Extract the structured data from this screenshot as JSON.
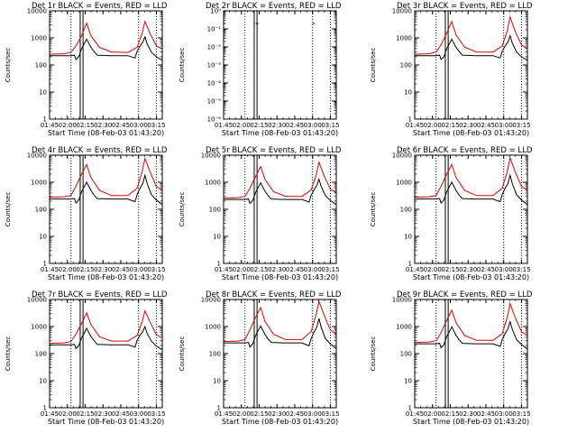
{
  "chart_data": {
    "type": "line",
    "colors": {
      "events": "#000000",
      "lld": "#dd0000"
    },
    "x_tick_labels": [
      "01:45",
      "02:00",
      "02:15",
      "02:30",
      "02:45",
      "03:00",
      "03:15"
    ],
    "x_ticks_hours": [
      1.75,
      2.0,
      2.25,
      2.5,
      2.75,
      3.0,
      3.25
    ],
    "xlim_hours": [
      1.75,
      3.333
    ],
    "xlabel": "Start Time (08-Feb-03 01:43:20)",
    "ylabel": "Counts/sec",
    "log_y": true,
    "grid": false,
    "panels": [
      {
        "title": "Det 1r BLACK = Events, RED = LLD",
        "ylim": [
          1,
          10000
        ],
        "y_tick_labels": [
          "1",
          "10",
          "100",
          "1000",
          "10000"
        ],
        "y_ticks": [
          1,
          10,
          100,
          1000,
          10000
        ],
        "markers_solid": [
          2.18,
          2.22
        ],
        "markers_dotted": [
          2.05,
          3.0,
          3.25
        ],
        "series": [
          {
            "key": "lld",
            "x": [
              1.75,
              1.95,
              2.05,
              2.12,
              2.2,
              2.27,
              2.33,
              2.45,
              2.62,
              2.85,
              2.98,
              3.05,
              3.09,
              3.16,
              3.25,
              3.33
            ],
            "y": [
              250,
              260,
              290,
              500,
              1200,
              3500,
              1200,
              450,
              300,
              290,
              450,
              1500,
              4000,
              1500,
              500,
              400
            ]
          },
          {
            "key": "events",
            "x": [
              1.75,
              2.05,
              2.1,
              2.12,
              2.16,
              2.2,
              2.27,
              2.33,
              2.38,
              2.42,
              2.6,
              2.85,
              2.95,
              2.98,
              3.02,
              3.06,
              3.09,
              3.12,
              3.18,
              3.25,
              3.33
            ],
            "y": [
              220,
              220,
              230,
              160,
              200,
              400,
              900,
              450,
              300,
              230,
              220,
              220,
              180,
              320,
              500,
              700,
              1100,
              600,
              300,
              200,
              150
            ]
          }
        ]
      },
      {
        "title": "Det 2r BLACK = Events, RED = LLD",
        "ylim": [
          1e-06,
          1
        ],
        "y_tick_labels": [
          "10⁰",
          "10⁻¹",
          "10⁻²",
          "10⁻³",
          "10⁻⁴",
          "10⁻⁵",
          "10⁻⁶"
        ],
        "y_ticks": [
          1,
          0.1,
          0.01,
          0.001,
          0.0001,
          1e-05,
          1e-06
        ],
        "markers_solid": [
          2.18,
          2.22
        ],
        "markers_dotted": [
          2.05,
          3.0,
          3.25
        ],
        "series": [
          {
            "key": "events",
            "x": [
              1.75,
              1.77
            ],
            "y": [
              0.2,
              0.2
            ]
          },
          {
            "key": "events",
            "x": [
              2.2,
              2.24
            ],
            "y": [
              0.2,
              0.2
            ]
          },
          {
            "key": "events",
            "x": [
              3.0,
              3.03
            ],
            "y": [
              0.2,
              0.2
            ]
          }
        ]
      },
      {
        "title": "Det 3r BLACK = Events, RED = LLD",
        "ylim": [
          1,
          10000
        ],
        "y_tick_labels": [
          "1",
          "10",
          "100",
          "1000",
          "10000"
        ],
        "y_ticks": [
          1,
          10,
          100,
          1000,
          10000
        ],
        "markers_solid": [
          2.18,
          2.22
        ],
        "markers_dotted": [
          2.05,
          3.0,
          3.25
        ],
        "series": [
          {
            "key": "lld",
            "x": [
              1.75,
              1.95,
              2.05,
              2.12,
              2.2,
              2.27,
              2.33,
              2.45,
              2.62,
              2.85,
              2.98,
              3.05,
              3.09,
              3.16,
              3.25,
              3.33
            ],
            "y": [
              250,
              260,
              300,
              550,
              1500,
              4000,
              1300,
              450,
              300,
              300,
              500,
              1800,
              6000,
              1800,
              550,
              400
            ]
          },
          {
            "key": "events",
            "x": [
              1.75,
              2.05,
              2.1,
              2.12,
              2.16,
              2.2,
              2.27,
              2.33,
              2.38,
              2.42,
              2.6,
              2.85,
              2.95,
              2.98,
              3.02,
              3.06,
              3.09,
              3.12,
              3.18,
              3.25,
              3.33
            ],
            "y": [
              220,
              220,
              230,
              160,
              200,
              400,
              900,
              450,
              300,
              230,
              220,
              220,
              180,
              320,
              500,
              700,
              1200,
              650,
              300,
              200,
              150
            ]
          }
        ]
      },
      {
        "title": "Det 4r BLACK = Events, RED = LLD",
        "ylim": [
          1,
          10000
        ],
        "y_tick_labels": [
          "1",
          "10",
          "100",
          "1000",
          "10000"
        ],
        "y_ticks": [
          1,
          10,
          100,
          1000,
          10000
        ],
        "markers_solid": [
          2.18,
          2.22
        ],
        "markers_dotted": [
          2.05,
          3.0,
          3.25
        ],
        "series": [
          {
            "key": "lld",
            "x": [
              1.75,
              1.95,
              2.05,
              2.12,
              2.2,
              2.27,
              2.33,
              2.45,
              2.62,
              2.85,
              2.98,
              3.05,
              3.09,
              3.16,
              3.25,
              3.33
            ],
            "y": [
              280,
              290,
              320,
              700,
              2000,
              4500,
              1500,
              500,
              320,
              320,
              600,
              2500,
              7500,
              2500,
              700,
              500
            ]
          },
          {
            "key": "events",
            "x": [
              1.75,
              2.05,
              2.1,
              2.12,
              2.16,
              2.2,
              2.27,
              2.33,
              2.38,
              2.42,
              2.6,
              2.85,
              2.95,
              2.98,
              3.02,
              3.06,
              3.09,
              3.12,
              3.18,
              3.25,
              3.33
            ],
            "y": [
              240,
              240,
              250,
              170,
              220,
              450,
              1000,
              500,
              320,
              250,
              240,
              240,
              190,
              350,
              600,
              900,
              1800,
              900,
              350,
              220,
              150
            ]
          }
        ]
      },
      {
        "title": "Det 5r BLACK = Events, RED = LLD",
        "ylim": [
          1,
          10000
        ],
        "y_tick_labels": [
          "1",
          "10",
          "100",
          "1000",
          "10000"
        ],
        "y_ticks": [
          1,
          10,
          100,
          1000,
          10000
        ],
        "markers_solid": [
          2.18,
          2.22
        ],
        "markers_dotted": [
          2.05,
          3.0,
          3.25
        ],
        "series": [
          {
            "key": "lld",
            "x": [
              1.75,
              1.95,
              2.05,
              2.12,
              2.2,
              2.27,
              2.33,
              2.45,
              2.62,
              2.85,
              2.98,
              3.05,
              3.09,
              3.16,
              3.25,
              3.33
            ],
            "y": [
              260,
              270,
              300,
              600,
              1600,
              3800,
              1300,
              450,
              300,
              300,
              520,
              1800,
              5500,
              1800,
              550,
              420
            ]
          },
          {
            "key": "events",
            "x": [
              1.75,
              2.05,
              2.1,
              2.12,
              2.16,
              2.2,
              2.27,
              2.33,
              2.38,
              2.42,
              2.6,
              2.85,
              2.95,
              2.98,
              3.02,
              3.06,
              3.09,
              3.12,
              3.18,
              3.25,
              3.33
            ],
            "y": [
              230,
              230,
              240,
              165,
              210,
              420,
              950,
              470,
              310,
              240,
              230,
              230,
              185,
              330,
              520,
              750,
              1300,
              700,
              320,
              210,
              150
            ]
          }
        ]
      },
      {
        "title": "Det 6r BLACK = Events, RED = LLD",
        "ylim": [
          1,
          10000
        ],
        "y_tick_labels": [
          "1",
          "10",
          "100",
          "1000",
          "10000"
        ],
        "y_ticks": [
          1,
          10,
          100,
          1000,
          10000
        ],
        "markers_solid": [
          2.18,
          2.22
        ],
        "markers_dotted": [
          2.05,
          3.0,
          3.25
        ],
        "series": [
          {
            "key": "lld",
            "x": [
              1.75,
              1.95,
              2.05,
              2.12,
              2.2,
              2.27,
              2.33,
              2.45,
              2.62,
              2.85,
              2.98,
              3.05,
              3.09,
              3.16,
              3.25,
              3.33
            ],
            "y": [
              280,
              290,
              320,
              700,
              2000,
              4500,
              1500,
              500,
              320,
              320,
              600,
              2500,
              8000,
              2500,
              700,
              500
            ]
          },
          {
            "key": "events",
            "x": [
              1.75,
              2.05,
              2.1,
              2.12,
              2.16,
              2.2,
              2.27,
              2.33,
              2.38,
              2.42,
              2.6,
              2.85,
              2.95,
              2.98,
              3.02,
              3.06,
              3.09,
              3.12,
              3.18,
              3.25,
              3.33
            ],
            "y": [
              240,
              240,
              250,
              170,
              220,
              450,
              1000,
              500,
              320,
              250,
              240,
              240,
              190,
              350,
              600,
              900,
              1800,
              900,
              350,
              220,
              150
            ]
          }
        ]
      },
      {
        "title": "Det 7r BLACK = Events, RED = LLD",
        "ylim": [
          1,
          10000
        ],
        "y_tick_labels": [
          "1",
          "10",
          "100",
          "1000",
          "10000"
        ],
        "y_ticks": [
          1,
          10,
          100,
          1000,
          10000
        ],
        "markers_solid": [
          2.18,
          2.22
        ],
        "markers_dotted": [
          2.05,
          3.0,
          3.25
        ],
        "series": [
          {
            "key": "lld",
            "x": [
              1.75,
              1.95,
              2.05,
              2.12,
              2.2,
              2.27,
              2.33,
              2.45,
              2.62,
              2.85,
              2.98,
              3.05,
              3.09,
              3.16,
              3.25,
              3.33
            ],
            "y": [
              240,
              250,
              280,
              520,
              1300,
              3200,
              1200,
              420,
              290,
              290,
              470,
              1500,
              3800,
              1500,
              500,
              380
            ]
          },
          {
            "key": "events",
            "x": [
              1.75,
              2.05,
              2.1,
              2.12,
              2.16,
              2.2,
              2.27,
              2.33,
              2.38,
              2.42,
              2.6,
              2.85,
              2.95,
              2.98,
              3.02,
              3.06,
              3.09,
              3.12,
              3.18,
              3.25,
              3.33
            ],
            "y": [
              210,
              210,
              220,
              155,
              195,
              380,
              850,
              430,
              290,
              220,
              210,
              210,
              175,
              310,
              480,
              650,
              1000,
              560,
              290,
              190,
              140
            ]
          }
        ]
      },
      {
        "title": "Det 8r BLACK = Events, RED = LLD",
        "ylim": [
          1,
          10000
        ],
        "y_tick_labels": [
          "1",
          "10",
          "100",
          "1000",
          "10000"
        ],
        "y_ticks": [
          1,
          10,
          100,
          1000,
          10000
        ],
        "markers_solid": [
          2.18,
          2.22
        ],
        "markers_dotted": [
          2.05,
          3.0,
          3.25
        ],
        "series": [
          {
            "key": "lld",
            "x": [
              1.75,
              1.95,
              2.05,
              2.12,
              2.2,
              2.27,
              2.33,
              2.45,
              2.62,
              2.85,
              2.98,
              3.05,
              3.09,
              3.16,
              3.25,
              3.33
            ],
            "y": [
              280,
              290,
              330,
              750,
              2200,
              5000,
              1600,
              520,
              330,
              330,
              650,
              2800,
              8500,
              2800,
              750,
              520
            ]
          },
          {
            "key": "events",
            "x": [
              1.75,
              2.05,
              2.1,
              2.12,
              2.16,
              2.2,
              2.27,
              2.33,
              2.38,
              2.42,
              2.6,
              2.85,
              2.95,
              2.98,
              3.02,
              3.06,
              3.09,
              3.12,
              3.18,
              3.25,
              3.33
            ],
            "y": [
              250,
              250,
              260,
              175,
              230,
              470,
              1050,
              520,
              330,
              260,
              250,
              250,
              195,
              360,
              620,
              950,
              2000,
              950,
              360,
              230,
              155
            ]
          }
        ]
      },
      {
        "title": "Det 9r BLACK = Events, RED = LLD",
        "ylim": [
          1,
          10000
        ],
        "y_tick_labels": [
          "1",
          "10",
          "100",
          "1000",
          "10000"
        ],
        "y_ticks": [
          1,
          10,
          100,
          1000,
          10000
        ],
        "markers_solid": [
          2.18,
          2.22
        ],
        "markers_dotted": [
          2.05,
          3.0,
          3.25
        ],
        "series": [
          {
            "key": "lld",
            "x": [
              1.75,
              1.95,
              2.05,
              2.12,
              2.2,
              2.27,
              2.33,
              2.45,
              2.62,
              2.85,
              2.98,
              3.05,
              3.09,
              3.16,
              3.25,
              3.33
            ],
            "y": [
              260,
              270,
              300,
              600,
              1700,
              4000,
              1400,
              470,
              310,
              310,
              550,
              2200,
              7000,
              2200,
              650,
              460
            ]
          },
          {
            "key": "events",
            "x": [
              1.75,
              2.05,
              2.1,
              2.12,
              2.16,
              2.2,
              2.27,
              2.33,
              2.38,
              2.42,
              2.6,
              2.85,
              2.95,
              2.98,
              3.02,
              3.06,
              3.09,
              3.12,
              3.18,
              3.25,
              3.33
            ],
            "y": [
              230,
              230,
              240,
              165,
              215,
              430,
              980,
              480,
              310,
              240,
              230,
              230,
              185,
              340,
              560,
              820,
              1500,
              800,
              330,
              215,
              150
            ]
          }
        ]
      }
    ]
  }
}
